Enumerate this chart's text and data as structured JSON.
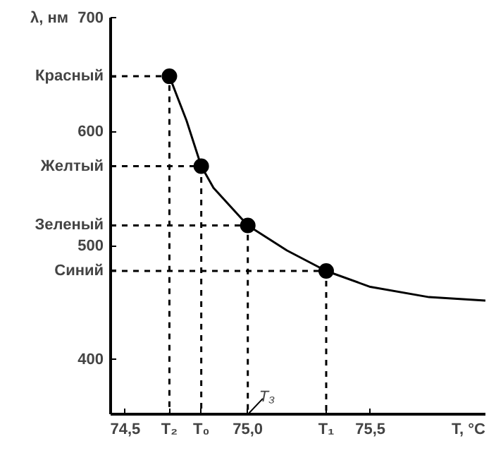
{
  "chart_data": {
    "type": "line",
    "ylabel": "λ, нм",
    "xlabel": "T, °C",
    "xlim": [
      74.44,
      75.97
    ],
    "ylim": [
      352,
      700
    ],
    "xticks": [
      {
        "value": 74.5,
        "label": "74,5"
      },
      {
        "value": 74.68,
        "label": "T₂"
      },
      {
        "value": 74.81,
        "label": "T₀"
      },
      {
        "value": 75.0,
        "label": "75,0"
      },
      {
        "value": 75.32,
        "label": "T₁"
      },
      {
        "value": 75.5,
        "label": "75,5"
      }
    ],
    "yticks": [
      400,
      500,
      600,
      700,
      {
        "value": 649,
        "label": "Красный"
      },
      {
        "value": 570,
        "label": "Желтый"
      },
      {
        "value": 518,
        "label": "Зеленый"
      },
      {
        "value": 478,
        "label": "Синий"
      }
    ],
    "grid": false,
    "annotations": [
      {
        "text": "T₃",
        "x": 75.0,
        "y": 352
      }
    ],
    "series": [
      {
        "color": "#000000",
        "line_style": "solid",
        "marker": "none",
        "x": [
          74.68,
          74.75,
          74.81,
          74.86,
          75.0,
          75.16,
          75.32,
          75.5,
          75.74,
          75.97
        ],
        "values": [
          649,
          610,
          570,
          551,
          518,
          496,
          478,
          464,
          455,
          452
        ]
      },
      {
        "color": "#000000",
        "line_style": "dashed",
        "marker": "none",
        "x": [
          74.44,
          74.68,
          74.68
        ],
        "values": [
          649,
          649,
          352
        ]
      },
      {
        "color": "#000000",
        "line_style": "dashed",
        "marker": "none",
        "x": [
          74.44,
          74.81,
          74.81
        ],
        "values": [
          570,
          570,
          352
        ]
      },
      {
        "color": "#000000",
        "line_style": "dashed",
        "marker": "none",
        "x": [
          74.44,
          75.0,
          75.0
        ],
        "values": [
          518,
          518,
          352
        ]
      },
      {
        "color": "#000000",
        "line_style": "dashed",
        "marker": "none",
        "x": [
          74.44,
          75.32,
          75.32
        ],
        "values": [
          478,
          478,
          352
        ]
      },
      {
        "type": "scatter",
        "color": "#000000",
        "marker": "circle",
        "x": [
          74.68,
          74.81,
          75.0,
          75.32
        ],
        "values": [
          649,
          570,
          518,
          478
        ]
      }
    ]
  }
}
